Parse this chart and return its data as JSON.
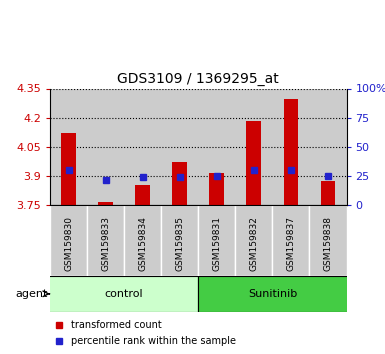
{
  "title": "GDS3109 / 1369295_at",
  "samples": [
    "GSM159830",
    "GSM159833",
    "GSM159834",
    "GSM159835",
    "GSM159831",
    "GSM159832",
    "GSM159837",
    "GSM159838"
  ],
  "bar_values": [
    4.12,
    3.765,
    3.855,
    3.975,
    3.915,
    4.185,
    4.295,
    3.875
  ],
  "percentile_values": [
    30,
    22,
    24,
    24,
    25,
    30,
    30,
    25
  ],
  "ylim": [
    3.75,
    4.35
  ],
  "yticks_left": [
    3.75,
    3.9,
    4.05,
    4.2,
    4.35
  ],
  "yticks_right_vals": [
    0,
    25,
    50,
    75,
    100
  ],
  "yticks_right_labels": [
    "0",
    "25",
    "50",
    "75",
    "100%"
  ],
  "bar_color": "#cc0000",
  "dot_color": "#2222cc",
  "control_bg": "#ccffcc",
  "sunitinib_bg": "#44cc44",
  "col_bg": "#cccccc",
  "control_label": "control",
  "sunitinib_label": "Sunitinib",
  "agent_label": "agent",
  "legend_bar_label": "transformed count",
  "legend_dot_label": "percentile rank within the sample",
  "ylabel_left_color": "#cc0000",
  "ylabel_right_color": "#2222cc",
  "n_control": 4,
  "n_sunitinib": 4
}
